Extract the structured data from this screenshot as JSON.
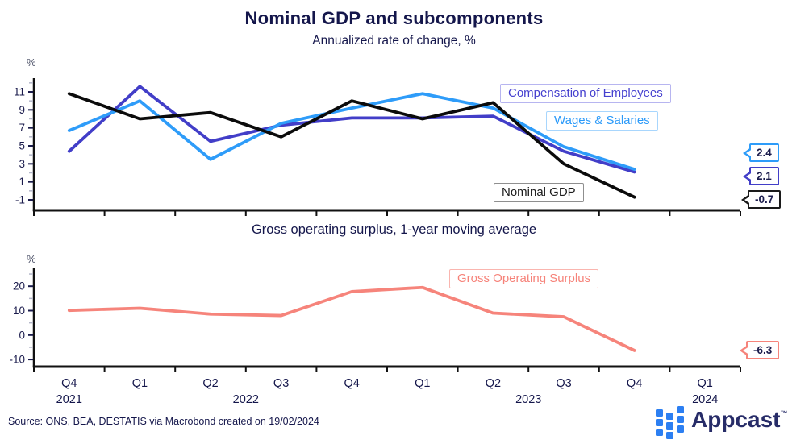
{
  "header": {
    "title": "Nominal GDP and subcomponents",
    "subtitle": "Annualized rate of change, %"
  },
  "chart_data": [
    {
      "type": "line",
      "title": "Nominal GDP and subcomponents",
      "subtitle": "Annualized rate of change, %",
      "ylabel": "%",
      "categories": [
        "Q4 2021",
        "Q1 2022",
        "Q2 2022",
        "Q3 2022",
        "Q4 2022",
        "Q1 2023",
        "Q2 2023",
        "Q3 2023",
        "Q4 2023"
      ],
      "series": [
        {
          "name": "Nominal GDP",
          "color": "#0b0b0b",
          "values": [
            10.8,
            8.0,
            8.7,
            6.0,
            10.0,
            8.0,
            9.8,
            3.0,
            -0.7
          ],
          "end_label": "-0.7"
        },
        {
          "name": "Wages & Salaries",
          "color": "#2e9cf9",
          "values": [
            6.7,
            10.0,
            3.5,
            7.5,
            9.2,
            10.8,
            9.2,
            4.9,
            2.4
          ],
          "end_label": "2.4"
        },
        {
          "name": "Compensation of Employees",
          "color": "#423ec8",
          "values": [
            4.4,
            11.6,
            5.5,
            7.3,
            8.1,
            8.1,
            8.3,
            4.4,
            2.1
          ],
          "end_label": "2.1"
        }
      ],
      "ylim": [
        -2.2,
        12.6
      ],
      "yticks_major": [
        11,
        9,
        7,
        5,
        3,
        1,
        -1
      ],
      "yticks_minor": [
        12,
        10,
        8,
        6,
        4,
        2,
        0
      ],
      "grid": false,
      "legend_position": "inside-right"
    },
    {
      "type": "line",
      "title": "Gross operating surplus, 1-year moving average",
      "ylabel": "%",
      "categories": [
        "Q4 2021",
        "Q1 2022",
        "Q2 2022",
        "Q3 2022",
        "Q4 2022",
        "Q1 2023",
        "Q2 2023",
        "Q3 2023",
        "Q4 2023"
      ],
      "series": [
        {
          "name": "Gross Operating Surplus",
          "color": "#f6847b",
          "values": [
            10.1,
            11.0,
            8.6,
            8.0,
            17.8,
            19.5,
            9.0,
            7.5,
            -6.3
          ],
          "end_label": "-6.3"
        }
      ],
      "ylim": [
        -13.5,
        27.5
      ],
      "yticks_major": [
        20,
        10,
        0,
        -10
      ],
      "yticks_minor": [
        25,
        15,
        5,
        -5
      ],
      "grid": false,
      "legend_position": "inside-right"
    }
  ],
  "x_axis": {
    "quarter_labels": [
      "Q4",
      "Q1",
      "Q2",
      "Q3",
      "Q4",
      "Q1",
      "Q2",
      "Q3",
      "Q4",
      "Q1"
    ],
    "year_labels": [
      {
        "label": "2021",
        "slot": 0
      },
      {
        "label": "2022",
        "slot": 2.5
      },
      {
        "label": "2023",
        "slot": 6.5
      },
      {
        "label": "2024",
        "slot": 9
      }
    ]
  },
  "footer": {
    "source": "Source: ONS, BEA, DESTATIS via Macrobond created on 19/02/2024",
    "brand": "Appcast",
    "brand_mark": "™"
  }
}
